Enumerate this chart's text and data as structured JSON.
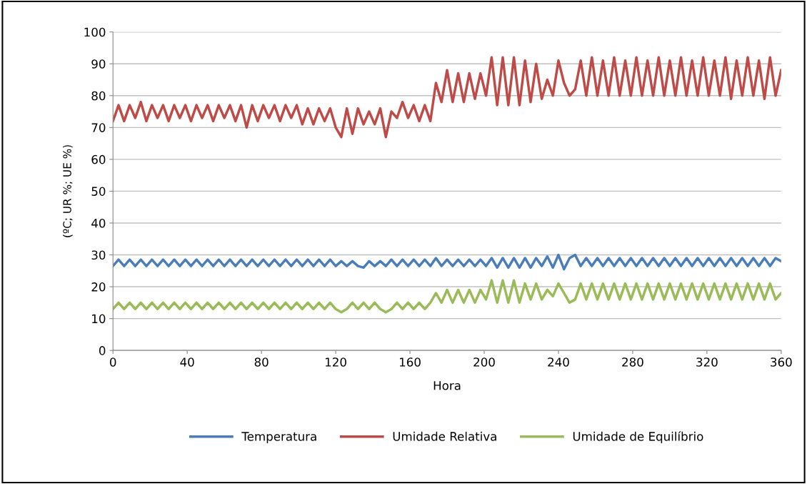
{
  "chart_data": {
    "type": "line",
    "xlabel": "Hora",
    "ylabel": "(ºC; UR %; UE %)",
    "x": [
      0,
      3,
      6,
      9,
      12,
      15,
      18,
      21,
      24,
      27,
      30,
      33,
      36,
      39,
      42,
      45,
      48,
      51,
      54,
      57,
      60,
      63,
      66,
      69,
      72,
      75,
      78,
      81,
      84,
      87,
      90,
      93,
      96,
      99,
      102,
      105,
      108,
      111,
      114,
      117,
      120,
      123,
      126,
      129,
      132,
      135,
      138,
      141,
      144,
      147,
      150,
      153,
      156,
      159,
      162,
      165,
      168,
      171,
      174,
      177,
      180,
      183,
      186,
      189,
      192,
      195,
      198,
      201,
      204,
      207,
      210,
      213,
      216,
      219,
      222,
      225,
      228,
      231,
      234,
      237,
      240,
      243,
      246,
      249,
      252,
      255,
      258,
      261,
      264,
      267,
      270,
      273,
      276,
      279,
      282,
      285,
      288,
      291,
      294,
      297,
      300,
      303,
      306,
      309,
      312,
      315,
      318,
      321,
      324,
      327,
      330,
      333,
      336,
      339,
      342,
      345,
      348,
      351,
      354,
      357,
      360
    ],
    "series": [
      {
        "name": "Temperatura",
        "color": "#4a7ebb",
        "values": [
          26.5,
          28.5,
          26.5,
          28.5,
          26.5,
          28.5,
          26.5,
          28.5,
          26.5,
          28.5,
          26.5,
          28.5,
          26.5,
          28.5,
          26.5,
          28.5,
          26.5,
          28.5,
          26.5,
          28.5,
          26.5,
          28.5,
          26.5,
          28.5,
          26.5,
          28.5,
          26.5,
          28.5,
          26.5,
          28.5,
          26.5,
          28.5,
          26.5,
          28.5,
          26.5,
          28.5,
          26.5,
          28.5,
          26.5,
          28.5,
          26.5,
          28,
          26.5,
          28,
          26.5,
          26,
          28,
          26.5,
          28,
          26.5,
          28.5,
          26.5,
          28.5,
          26.5,
          28.5,
          26.5,
          28.5,
          26.5,
          29,
          26.5,
          28.5,
          26.5,
          28.5,
          26.5,
          28.5,
          26.5,
          28.5,
          26.5,
          29,
          26,
          29,
          26,
          29,
          26,
          29,
          26,
          29,
          26.5,
          29.5,
          26,
          30,
          25.5,
          29,
          30,
          26.5,
          29,
          26.5,
          29,
          26.5,
          29,
          26.5,
          29,
          26.5,
          29,
          26.5,
          29,
          26.5,
          29,
          26.5,
          29,
          26.5,
          29,
          26.5,
          29,
          26.5,
          29,
          26.5,
          29,
          26.5,
          29,
          26.5,
          29,
          26.5,
          29,
          26.5,
          29,
          26.5,
          29,
          26.5,
          29,
          28
        ]
      },
      {
        "name": "Umidade Relativa",
        "color": "#be4b48",
        "values": [
          72,
          77,
          72,
          77,
          73,
          78,
          72,
          77,
          73,
          77,
          72,
          77,
          73,
          77,
          72,
          77,
          73,
          77,
          72,
          77,
          73,
          77,
          72,
          77,
          70,
          77,
          72,
          77,
          73,
          77,
          72,
          77,
          73,
          77,
          71,
          76,
          71,
          76,
          72,
          76,
          70,
          67,
          76,
          68,
          76,
          71,
          75,
          71,
          76,
          67,
          75,
          73,
          78,
          73,
          77,
          72,
          77,
          72,
          84,
          78,
          88,
          78,
          87,
          78,
          87,
          79,
          87,
          80,
          92,
          77,
          92,
          77,
          92,
          77,
          91,
          78,
          90,
          79,
          85,
          80,
          91,
          84,
          80,
          82,
          91,
          80,
          92,
          80,
          91,
          80,
          92,
          80,
          91,
          80,
          92,
          80,
          91,
          80,
          92,
          80,
          91,
          80,
          92,
          80,
          91,
          80,
          92,
          80,
          91,
          80,
          92,
          79,
          91,
          80,
          92,
          80,
          91,
          79,
          92,
          80,
          88
        ]
      },
      {
        "name": "Umidade de Equilíbrio",
        "color": "#9bbb59",
        "values": [
          13,
          15,
          13,
          15,
          13,
          15,
          13,
          15,
          13,
          15,
          13,
          15,
          13,
          15,
          13,
          15,
          13,
          15,
          13,
          15,
          13,
          15,
          13,
          15,
          13,
          15,
          13,
          15,
          13,
          15,
          13,
          15,
          13,
          15,
          13,
          15,
          13,
          15,
          13,
          15,
          13,
          12,
          13,
          15,
          13,
          15,
          13,
          15,
          13,
          12,
          13,
          15,
          13,
          15,
          13,
          15,
          13,
          15,
          18,
          15,
          19,
          15,
          19,
          15,
          19,
          15,
          19,
          16,
          22,
          15,
          22,
          15,
          22,
          15,
          21,
          16,
          21,
          16,
          19,
          17,
          21,
          18,
          15,
          16,
          21,
          16,
          21,
          16,
          21,
          16,
          21,
          16,
          21,
          16,
          21,
          16,
          21,
          16,
          21,
          16,
          21,
          16,
          21,
          16,
          21,
          16,
          21,
          16,
          21,
          16,
          21,
          16,
          21,
          16,
          21,
          16,
          21,
          16,
          21,
          16,
          18
        ]
      }
    ],
    "xlim": [
      0,
      360
    ],
    "xticks": [
      0,
      40,
      80,
      120,
      160,
      200,
      240,
      280,
      320,
      360
    ],
    "ylim": [
      0,
      100
    ],
    "yticks": [
      0,
      10,
      20,
      30,
      40,
      50,
      60,
      70,
      80,
      90,
      100
    ],
    "grid": "y",
    "legend": "bottom",
    "marker": "none",
    "line_style": "solid"
  }
}
